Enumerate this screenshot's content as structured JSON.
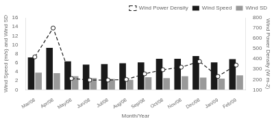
{
  "chart_data": {
    "type": "bar",
    "xlabel": "Month/Year",
    "ylabel": "Wind Speed (m/s) and Wind SD",
    "y2label": "Wind Power Density (W m-2)",
    "categories": [
      "Mar/08",
      "Apr/08",
      "May/08",
      "Jun/08",
      "Jul/08",
      "Aug/08",
      "Sep/08",
      "Oct/08",
      "Nov/08",
      "Dec/08",
      "Jan/09",
      "Feb/09"
    ],
    "series": [
      {
        "name": "Wind Speed",
        "type": "bar",
        "color": "#1a1a1a",
        "values": [
          7.2,
          9.3,
          6.3,
          5.6,
          5.7,
          5.9,
          6.1,
          6.9,
          6.9,
          7.5,
          6.1,
          6.8
        ]
      },
      {
        "name": "Wind SD",
        "type": "bar",
        "color": "#999999",
        "values": [
          3.8,
          3.7,
          3.0,
          2.6,
          2.4,
          2.2,
          2.8,
          2.6,
          3.0,
          2.7,
          2.5,
          3.2
        ]
      },
      {
        "name": "Wind Power Density",
        "type": "line",
        "axis": "y2",
        "color": "#1a1a1a",
        "line_style": "dashed",
        "marker": "circle",
        "values": [
          420,
          700,
          210,
          195,
          195,
          200,
          255,
          295,
          320,
          375,
          230,
          340
        ]
      }
    ],
    "ylim": [
      0,
      16
    ],
    "yticks": [
      0,
      2,
      4,
      6,
      8,
      10,
      12,
      14,
      16
    ],
    "y2lim": [
      100,
      800
    ],
    "y2ticks": [
      100,
      200,
      300,
      400,
      500,
      600,
      700,
      800
    ],
    "legend": "upper right",
    "grid": false
  }
}
